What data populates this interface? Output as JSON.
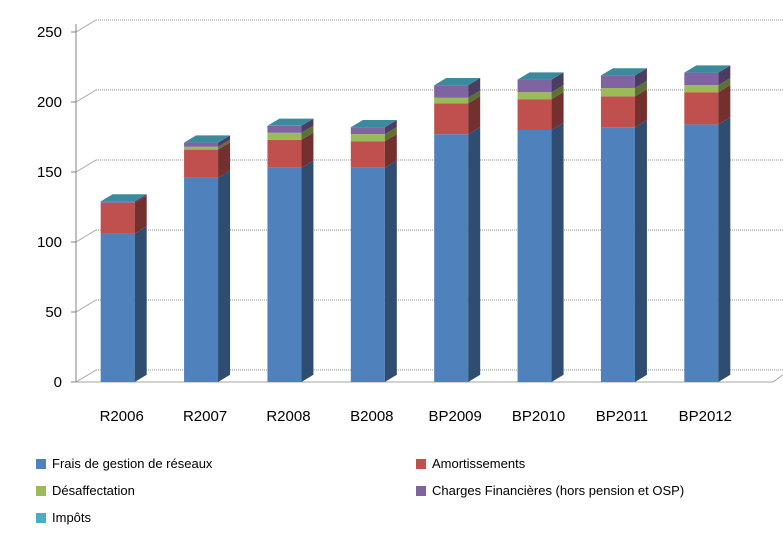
{
  "chart_data": {
    "type": "bar",
    "stacked": true,
    "three_d": true,
    "categories": [
      "R2006",
      "R2007",
      "R2008",
      "B2008",
      "BP2009",
      "BP2010",
      "BP2011",
      "BP2012"
    ],
    "series": [
      {
        "name": "Frais de gestion de réseaux",
        "color": "#4F81BD",
        "values": [
          106,
          146,
          153,
          153,
          177,
          180,
          182,
          184
        ]
      },
      {
        "name": "Amortissements",
        "color": "#C0504D",
        "values": [
          22,
          20,
          20,
          19,
          22,
          22,
          22,
          23
        ]
      },
      {
        "name": "Désaffectation",
        "color": "#9BBB59",
        "values": [
          0,
          2,
          5,
          5,
          4,
          5,
          6,
          5
        ]
      },
      {
        "name": "Charges Financières (hors pension et OSP)",
        "color": "#8064A2",
        "values": [
          1,
          3,
          5,
          5,
          9,
          9,
          9,
          9
        ]
      },
      {
        "name": "Impôts",
        "color": "#4BACC6",
        "values": [
          0,
          0,
          0,
          0,
          0,
          0,
          0,
          0
        ]
      }
    ],
    "yticks": [
      0,
      50,
      100,
      150,
      200,
      250
    ],
    "ylim": [
      0,
      250
    ],
    "grid": true,
    "legend_position": "bottom",
    "title": "",
    "xlabel": "",
    "ylabel": ""
  }
}
